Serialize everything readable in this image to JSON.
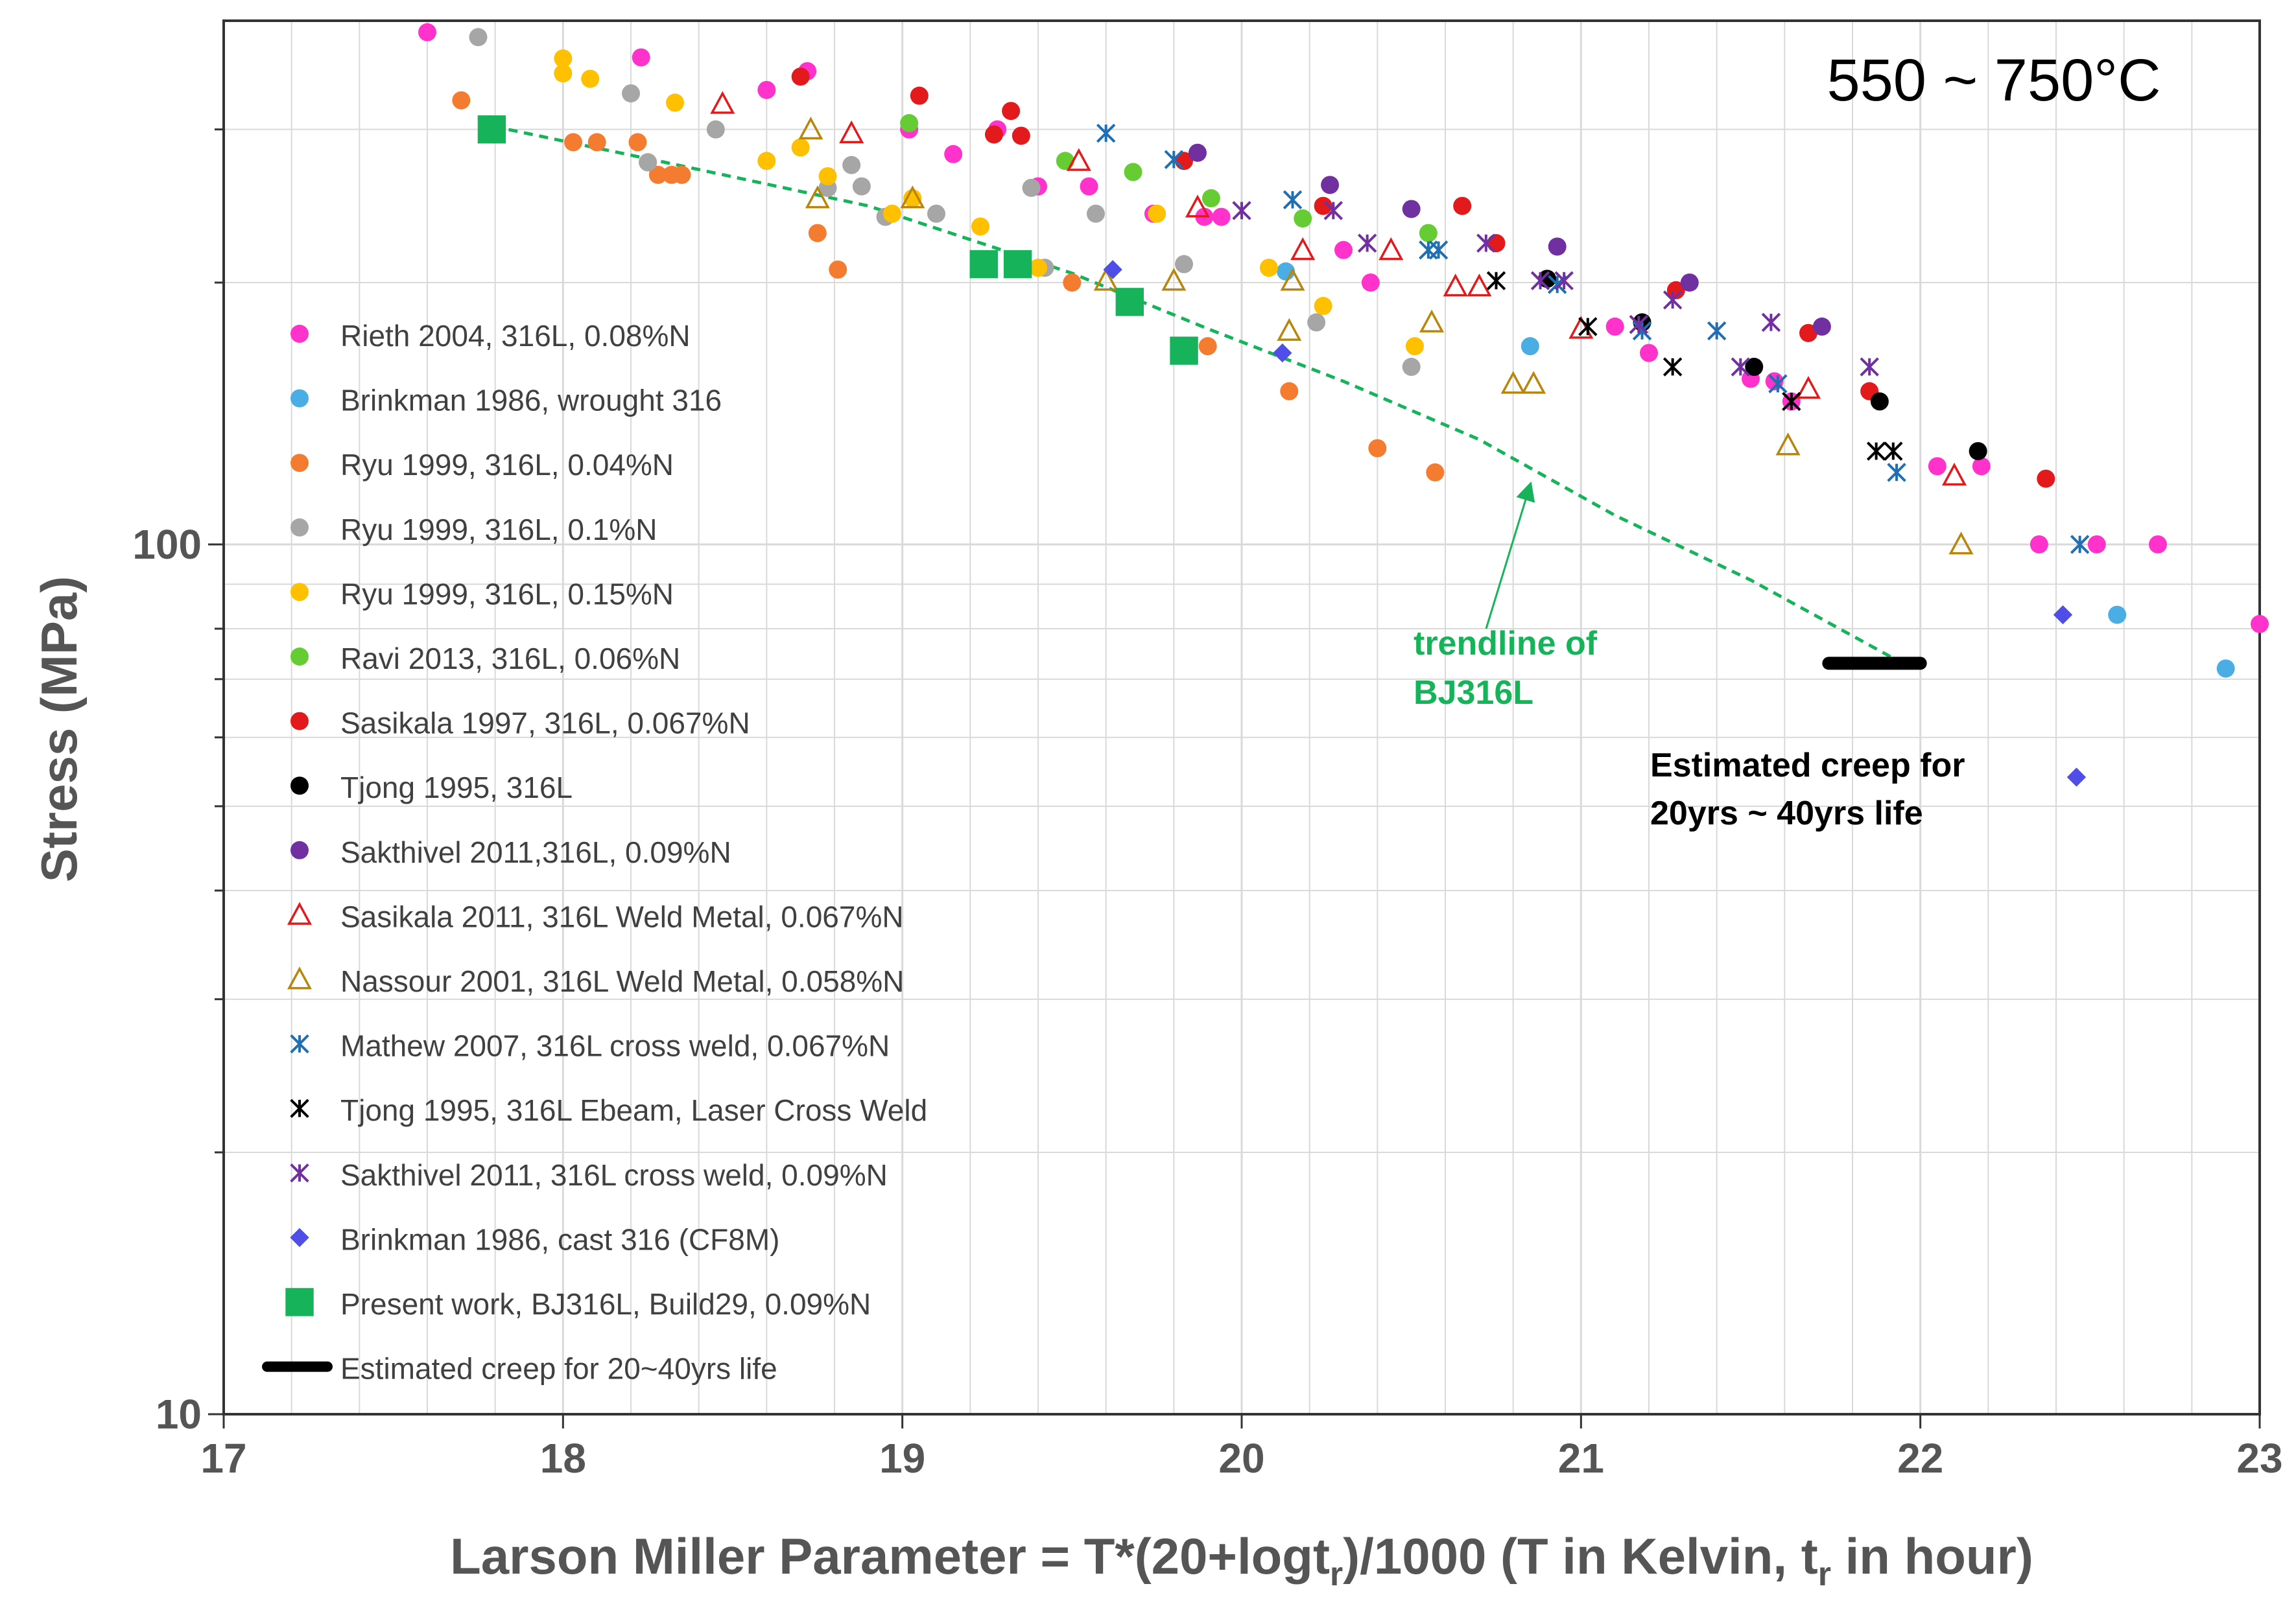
{
  "chart_data": {
    "type": "scatter",
    "title": "550 ~ 750°C",
    "xlabel": "Larson Miller Parameter = T*(20+logt_r)/1000 (T in Kelvin, t_r in hour)",
    "xlabel_parts": {
      "main": "Larson Miller Parameter = T*(20+logt",
      "sub1": "r",
      "mid": ")/1000 (T in Kelvin, t",
      "sub2": "r",
      "end": " in hour)"
    },
    "ylabel": "Stress (MPa)",
    "xlim": [
      17,
      23
    ],
    "ylim": [
      10,
      400
    ],
    "yscale": "log",
    "grid": true,
    "x_ticks": [
      "17",
      "18",
      "19",
      "20",
      "21",
      "22",
      "23"
    ],
    "y_ticks": [
      {
        "value": 10,
        "label": "10"
      },
      {
        "value": 100,
        "label": "100"
      }
    ],
    "legend_position": "left",
    "series": [
      {
        "name": "Rieth 2004, 316L, 0.08%N",
        "color": "#ff33cc",
        "marker": "circle",
        "points": [
          [
            17.6,
            388
          ],
          [
            18.23,
            363
          ],
          [
            18.6,
            333
          ],
          [
            18.72,
            350
          ],
          [
            19.02,
            300
          ],
          [
            19.15,
            281
          ],
          [
            19.28,
            300
          ],
          [
            19.4,
            258
          ],
          [
            19.55,
            258
          ],
          [
            19.74,
            240
          ],
          [
            19.89,
            238
          ],
          [
            19.94,
            238
          ],
          [
            20.3,
            218
          ],
          [
            20.38,
            200
          ],
          [
            21.1,
            178
          ],
          [
            21.2,
            166
          ],
          [
            21.5,
            155
          ],
          [
            21.57,
            154
          ],
          [
            21.62,
            146
          ],
          [
            22.05,
            123
          ],
          [
            22.18,
            123
          ],
          [
            22.35,
            100
          ],
          [
            22.52,
            100
          ],
          [
            22.7,
            100
          ],
          [
            23.0,
            81
          ]
        ]
      },
      {
        "name": "Brinkman 1986, wrought 316",
        "color": "#4aaee4",
        "marker": "circle",
        "points": [
          [
            20.13,
            206
          ],
          [
            20.85,
            169
          ],
          [
            22.58,
            83
          ],
          [
            22.9,
            72
          ]
        ]
      },
      {
        "name": "Ryu 1999, 316L, 0.04%N",
        "color": "#f47c30",
        "marker": "circle",
        "points": [
          [
            17.7,
            324
          ],
          [
            18.03,
            290
          ],
          [
            18.1,
            290
          ],
          [
            18.22,
            290
          ],
          [
            18.25,
            275
          ],
          [
            18.28,
            266
          ],
          [
            18.32,
            266
          ],
          [
            18.35,
            266
          ],
          [
            18.75,
            228
          ],
          [
            18.81,
            207
          ],
          [
            19.5,
            200
          ],
          [
            19.9,
            169
          ],
          [
            20.14,
            150
          ],
          [
            20.4,
            129
          ],
          [
            20.57,
            121
          ]
        ]
      },
      {
        "name": "Ryu 1999, 316L, 0.1%N",
        "color": "#a6a6a6",
        "marker": "circle",
        "points": [
          [
            17.75,
            383
          ],
          [
            18.2,
            330
          ],
          [
            18.25,
            275
          ],
          [
            18.45,
            300
          ],
          [
            18.78,
            257
          ],
          [
            18.85,
            273
          ],
          [
            18.88,
            258
          ],
          [
            18.95,
            238
          ],
          [
            19.1,
            240
          ],
          [
            19.38,
            257
          ],
          [
            19.42,
            208
          ],
          [
            19.57,
            240
          ],
          [
            19.83,
            210
          ],
          [
            20.22,
            180
          ],
          [
            20.5,
            160
          ]
        ]
      },
      {
        "name": "Ryu 1999, 316L, 0.15%N",
        "color": "#ffc000",
        "marker": "circle",
        "points": [
          [
            18.0,
            362
          ],
          [
            18.0,
            348
          ],
          [
            18.08,
            343
          ],
          [
            18.33,
            322
          ],
          [
            18.6,
            276
          ],
          [
            18.7,
            286
          ],
          [
            18.78,
            265
          ],
          [
            18.97,
            240
          ],
          [
            19.03,
            250
          ],
          [
            19.23,
            232
          ],
          [
            19.4,
            208
          ],
          [
            19.75,
            240
          ],
          [
            20.08,
            208
          ],
          [
            20.24,
            188
          ],
          [
            20.51,
            169
          ]
        ]
      },
      {
        "name": "Ravi 2013, 316L, 0.06%N",
        "color": "#66cc33",
        "marker": "circle",
        "points": [
          [
            19.02,
            305
          ],
          [
            19.48,
            276
          ],
          [
            19.68,
            268
          ],
          [
            19.91,
            250
          ],
          [
            20.18,
            237
          ],
          [
            20.55,
            228
          ]
        ]
      },
      {
        "name": "Sasikala 1997, 316L, 0.067%N",
        "color": "#e31a1c",
        "marker": "circle",
        "points": [
          [
            18.7,
            345
          ],
          [
            19.05,
            328
          ],
          [
            19.27,
            296
          ],
          [
            19.32,
            315
          ],
          [
            19.35,
            295
          ],
          [
            19.83,
            276
          ],
          [
            20.24,
            245
          ],
          [
            20.65,
            245
          ],
          [
            20.75,
            222
          ],
          [
            21.28,
            196
          ],
          [
            21.67,
            175
          ],
          [
            21.85,
            150
          ],
          [
            22.37,
            119
          ]
        ]
      },
      {
        "name": "Tjong 1995, 316L",
        "color": "#000000",
        "marker": "circle",
        "points": [
          [
            20.9,
            202
          ],
          [
            21.18,
            180
          ],
          [
            21.51,
            160
          ],
          [
            21.88,
            146
          ],
          [
            22.17,
            128
          ]
        ]
      },
      {
        "name": "Sakthivel 2011,316L, 0.09%N",
        "color": "#7030a0",
        "marker": "circle",
        "points": [
          [
            19.87,
            282
          ],
          [
            20.26,
            259
          ],
          [
            20.5,
            243
          ],
          [
            20.93,
            220
          ],
          [
            21.32,
            200
          ],
          [
            21.71,
            178
          ]
        ]
      },
      {
        "name": "Sasikala 2011, 316L Weld Metal, 0.067%N",
        "color": "#e31a1c",
        "marker": "triangle",
        "points": [
          [
            18.47,
            321
          ],
          [
            18.85,
            297
          ],
          [
            19.52,
            276
          ],
          [
            19.87,
            244
          ],
          [
            20.18,
            218
          ],
          [
            20.44,
            218
          ],
          [
            20.63,
            198
          ],
          [
            20.7,
            198
          ],
          [
            21.0,
            177
          ],
          [
            21.67,
            151
          ],
          [
            22.1,
            120
          ]
        ]
      },
      {
        "name": "Nassour 2001, 316L Weld Metal, 0.058%N",
        "color": "#b8860b",
        "marker": "triangle",
        "points": [
          [
            18.73,
            300
          ],
          [
            18.75,
            250
          ],
          [
            19.03,
            250
          ],
          [
            19.6,
            201
          ],
          [
            19.8,
            201
          ],
          [
            20.15,
            201
          ],
          [
            20.14,
            176
          ],
          [
            20.56,
            180
          ],
          [
            20.8,
            153
          ],
          [
            20.86,
            153
          ],
          [
            21.61,
            130
          ],
          [
            22.12,
            100
          ]
        ]
      },
      {
        "name": "Mathew 2007, 316L cross weld, 0.067%N",
        "color": "#1f6fb2",
        "marker": "xstar",
        "points": [
          [
            19.6,
            297
          ],
          [
            19.8,
            277
          ],
          [
            20.15,
            249
          ],
          [
            20.55,
            218
          ],
          [
            20.58,
            218
          ],
          [
            20.93,
            199
          ],
          [
            21.18,
            176
          ],
          [
            21.4,
            176
          ],
          [
            21.58,
            153
          ],
          [
            21.93,
            121
          ],
          [
            22.47,
            100
          ]
        ]
      },
      {
        "name": "Tjong 1995, 316L Ebeam, Laser Cross Weld",
        "color": "#000000",
        "marker": "xstar",
        "points": [
          [
            20.75,
            201
          ],
          [
            21.02,
            178
          ],
          [
            21.27,
            160
          ],
          [
            21.62,
            146
          ],
          [
            21.87,
            128
          ],
          [
            21.92,
            128
          ]
        ]
      },
      {
        "name": "Sakthivel 2011, 316L cross weld, 0.09%N",
        "color": "#7030a0",
        "marker": "xstar",
        "points": [
          [
            20.0,
            242
          ],
          [
            20.27,
            242
          ],
          [
            20.37,
            222
          ],
          [
            20.72,
            222
          ],
          [
            20.88,
            201
          ],
          [
            20.95,
            201
          ],
          [
            21.17,
            179
          ],
          [
            21.27,
            191
          ],
          [
            21.47,
            160
          ],
          [
            21.56,
            180
          ],
          [
            21.85,
            160
          ]
        ]
      },
      {
        "name": "Brinkman 1986, cast 316 (CF8M)",
        "color": "#4f4fe8",
        "marker": "diamond",
        "points": [
          [
            19.62,
            207
          ],
          [
            20.12,
            166
          ],
          [
            22.42,
            83
          ],
          [
            22.46,
            54
          ]
        ]
      },
      {
        "name": "Present work, BJ316L, Build29, 0.09%N",
        "color": "#16b35a",
        "marker": "square",
        "points": [
          [
            17.79,
            300
          ],
          [
            19.24,
            210
          ],
          [
            19.34,
            210
          ],
          [
            19.67,
            190
          ],
          [
            19.83,
            167
          ]
        ]
      }
    ],
    "trendline": {
      "name": "trendline of BJ316L",
      "label_line1": "trendline of",
      "label_line2": "BJ316L",
      "color": "#16b35a",
      "points": [
        [
          17.75,
          305
        ],
        [
          18.3,
          275
        ],
        [
          18.9,
          245
        ],
        [
          19.5,
          205
        ],
        [
          19.9,
          177
        ],
        [
          20.3,
          154
        ],
        [
          20.7,
          132
        ],
        [
          21.1,
          108
        ],
        [
          21.5,
          91
        ],
        [
          21.92,
          74
        ]
      ],
      "arrow_target": [
        20.85,
        117
      ]
    },
    "estimated_band": {
      "name": "Estimated creep for 20~40yrs life",
      "color": "#000000",
      "x_range": [
        21.73,
        22.0
      ],
      "y": 73,
      "label_line1": "Estimated creep for",
      "label_line2": "20yrs ~ 40yrs life"
    }
  }
}
